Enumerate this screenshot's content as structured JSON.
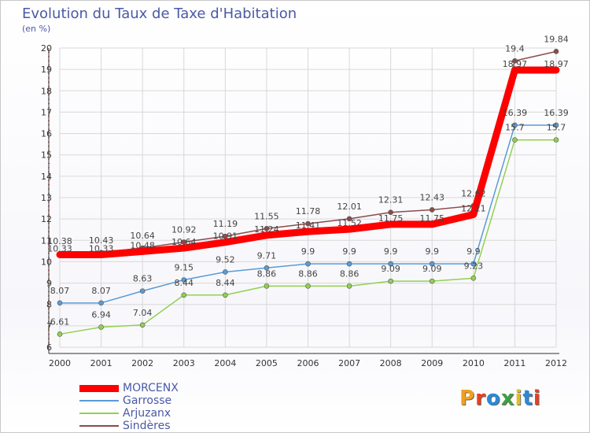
{
  "title": "Evolution du Taux de Taxe d'Habitation",
  "subtitle": "(en %)",
  "logo": {
    "text": "Proxiti",
    "colors": [
      "#f0a020",
      "#e84020",
      "#2a8ad8",
      "#40a040",
      "#e0c020",
      "#2a8ad8",
      "#e84020"
    ]
  },
  "chart_data": {
    "type": "line",
    "title": "Evolution du Taux de Taxe d'Habitation",
    "ylabel": "(en %)",
    "xlabel": "",
    "x": [
      "2000",
      "2001",
      "2002",
      "2003",
      "2004",
      "2005",
      "2006",
      "2007",
      "2008",
      "2009",
      "2010",
      "2011",
      "2012"
    ],
    "ylim": [
      6,
      20
    ],
    "yticks": [
      "6",
      "7",
      "8",
      "9",
      "10",
      "11",
      "12",
      "13",
      "14",
      "15",
      "16",
      "17",
      "18",
      "19",
      "20"
    ],
    "grid": true,
    "legend": "bottom-left",
    "series": [
      {
        "name": "MORCENX",
        "color": "#ff0000",
        "values": [
          10.33,
          10.33,
          10.48,
          10.64,
          10.91,
          11.24,
          11.41,
          11.52,
          11.75,
          11.75,
          12.21,
          18.97,
          18.97
        ],
        "labels": [
          "10.33",
          "10.33",
          "10.48",
          "10.64",
          "10.91",
          "11.24",
          "11.41",
          "11.52",
          "11.75",
          "11.75",
          "12.21",
          "18.97",
          "18.97"
        ]
      },
      {
        "name": "Garrosse",
        "color": "#5b9bd5",
        "values": [
          8.07,
          8.07,
          8.63,
          9.15,
          9.52,
          9.71,
          9.9,
          9.9,
          9.9,
          9.9,
          9.9,
          16.39,
          16.39
        ],
        "labels": [
          "8.07",
          "8.07",
          "8.63",
          "9.15",
          "9.52",
          "9.71",
          "9.9",
          "9.9",
          "9.9",
          "9.9",
          "9.9",
          "16.39",
          "16.39"
        ]
      },
      {
        "name": "Arjuzanx",
        "color": "#92d050",
        "values": [
          6.61,
          6.94,
          7.04,
          8.44,
          8.44,
          8.86,
          8.86,
          8.86,
          9.09,
          9.09,
          9.23,
          15.7,
          15.7
        ],
        "labels": [
          "6.61",
          "6.94",
          "7.04",
          "8.44",
          "8.44",
          "8.86",
          "8.86",
          "8.86",
          "9.09",
          "9.09",
          "9.23",
          "15.7",
          "15.7"
        ]
      },
      {
        "name": "Sindères",
        "color": "#8b4b4b",
        "values": [
          10.38,
          10.43,
          10.64,
          10.92,
          11.19,
          11.55,
          11.78,
          12.01,
          12.31,
          12.43,
          12.62,
          19.4,
          19.84
        ],
        "labels": [
          "10.38",
          "10.43",
          "10.64",
          "10.92",
          "11.19",
          "11.55",
          "11.78",
          "12.01",
          "12.31",
          "12.43",
          "12.62",
          "19.4",
          "19.84"
        ]
      }
    ]
  }
}
